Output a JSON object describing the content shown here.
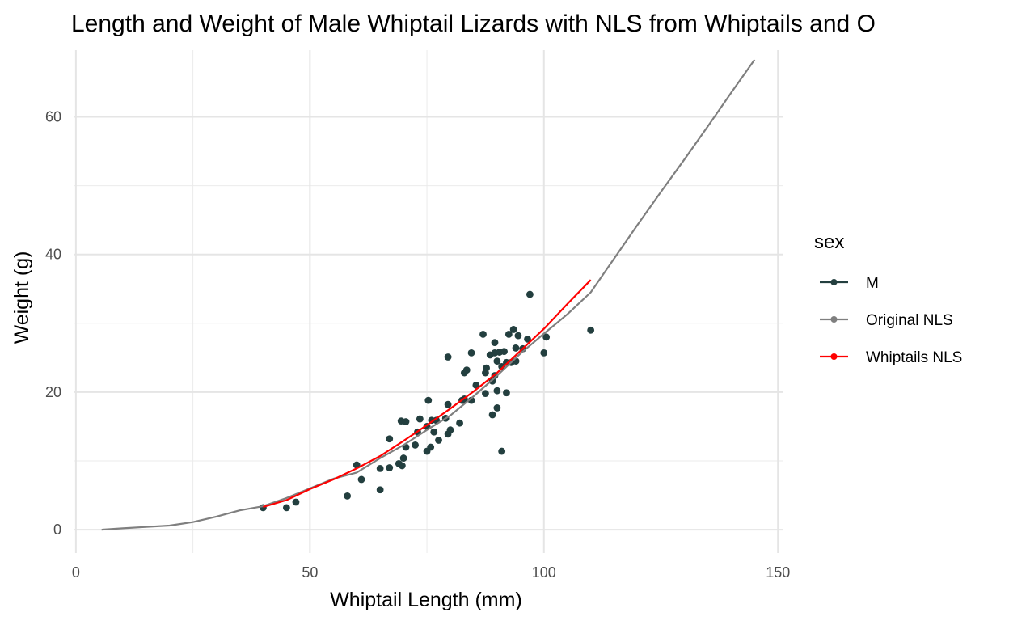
{
  "chart_data": {
    "type": "scatter",
    "title": "Length and Weight of Male Whiptail Lizards with NLS from Whiptails and O",
    "xlabel": "Whiptail Length (mm)",
    "ylabel": "Weight (g)",
    "xlim": [
      -0.5,
      151
    ],
    "ylim": [
      -3.4,
      69.7
    ],
    "x_ticks": [
      0,
      50,
      100,
      150
    ],
    "x_tick_labels": [
      "0",
      "50",
      "100",
      "150"
    ],
    "y_ticks": [
      0,
      20,
      40,
      60
    ],
    "y_tick_labels": [
      "0",
      "20",
      "40",
      "60"
    ],
    "grid": true,
    "legend": {
      "title": "sex",
      "position": "right",
      "entries": [
        {
          "label": "M",
          "color": "#233f3f"
        },
        {
          "label": "Original NLS",
          "color": "#7f7f7f"
        },
        {
          "label": "Whiptails NLS",
          "color": "#ff0000"
        }
      ]
    },
    "series": [
      {
        "name": "M",
        "kind": "points",
        "color": "#233f3f",
        "points": [
          [
            40,
            3.2
          ],
          [
            45,
            3.2
          ],
          [
            47,
            4.0
          ],
          [
            58,
            4.9
          ],
          [
            60,
            9.4
          ],
          [
            61,
            7.3
          ],
          [
            65,
            5.8
          ],
          [
            65,
            8.9
          ],
          [
            67,
            13.2
          ],
          [
            67,
            9.0
          ],
          [
            69,
            9.6
          ],
          [
            69.5,
            15.8
          ],
          [
            69.7,
            9.3
          ],
          [
            70,
            10.4
          ],
          [
            70.5,
            15.7
          ],
          [
            70.5,
            12.0
          ],
          [
            72.5,
            12.3
          ],
          [
            73,
            14.2
          ],
          [
            73.5,
            16.1
          ],
          [
            75,
            11.4
          ],
          [
            75,
            15.0
          ],
          [
            75.3,
            18.8
          ],
          [
            75.8,
            12.0
          ],
          [
            76,
            15.9
          ],
          [
            76.5,
            14.2
          ],
          [
            77,
            15.9
          ],
          [
            77.5,
            13.0
          ],
          [
            79,
            16.2
          ],
          [
            79.5,
            13.9
          ],
          [
            79.5,
            18.2
          ],
          [
            79.5,
            25.1
          ],
          [
            80,
            14.5
          ],
          [
            82,
            15.5
          ],
          [
            82.5,
            18.8
          ],
          [
            83,
            19.0
          ],
          [
            83,
            22.8
          ],
          [
            83.5,
            23.2
          ],
          [
            84.5,
            18.8
          ],
          [
            84.5,
            25.7
          ],
          [
            85.5,
            21.0
          ],
          [
            87,
            28.4
          ],
          [
            87.5,
            22.8
          ],
          [
            87.5,
            19.8
          ],
          [
            87.7,
            23.5
          ],
          [
            88.5,
            25.4
          ],
          [
            89,
            16.7
          ],
          [
            89,
            21.6
          ],
          [
            89.5,
            22.4
          ],
          [
            89.5,
            25.7
          ],
          [
            89.5,
            27.2
          ],
          [
            90,
            17.7
          ],
          [
            90,
            20.2
          ],
          [
            90,
            24.5
          ],
          [
            90.5,
            25.8
          ],
          [
            91,
            11.4
          ],
          [
            91,
            23.7
          ],
          [
            91.5,
            25.9
          ],
          [
            92,
            19.9
          ],
          [
            92,
            24.3
          ],
          [
            92.5,
            28.4
          ],
          [
            93,
            24.3
          ],
          [
            93.5,
            29.1
          ],
          [
            94,
            24.5
          ],
          [
            94,
            26.4
          ],
          [
            94.5,
            28.2
          ],
          [
            95.5,
            26.3
          ],
          [
            96.5,
            27.7
          ],
          [
            97,
            34.2
          ],
          [
            100,
            25.7
          ],
          [
            100.5,
            28.0
          ],
          [
            110,
            29.0
          ]
        ]
      },
      {
        "name": "Original NLS",
        "kind": "line",
        "color": "#7f7f7f",
        "points": [
          [
            5.5,
            0.0
          ],
          [
            10,
            0.2
          ],
          [
            15,
            0.4
          ],
          [
            20,
            0.6
          ],
          [
            25,
            1.1
          ],
          [
            30,
            1.9
          ],
          [
            35,
            2.8
          ],
          [
            40,
            3.4
          ],
          [
            45,
            4.6
          ],
          [
            50,
            6.0
          ],
          [
            55,
            7.4
          ],
          [
            60,
            8.3
          ],
          [
            65,
            10.4
          ],
          [
            70,
            12.3
          ],
          [
            75,
            14.5
          ],
          [
            80,
            16.6
          ],
          [
            85,
            19.4
          ],
          [
            90,
            22.4
          ],
          [
            95,
            25.6
          ],
          [
            100,
            28.5
          ],
          [
            105,
            31.3
          ],
          [
            110,
            34.5
          ],
          [
            115,
            39.4
          ],
          [
            120,
            44.3
          ],
          [
            125,
            49.1
          ],
          [
            130,
            53.8
          ],
          [
            135,
            58.6
          ],
          [
            140,
            63.5
          ],
          [
            145,
            68.3
          ]
        ]
      },
      {
        "name": "Whiptails NLS",
        "kind": "line",
        "color": "#ff0000",
        "points": [
          [
            40,
            3.3
          ],
          [
            45,
            4.3
          ],
          [
            50,
            5.9
          ],
          [
            55,
            7.3
          ],
          [
            60,
            8.9
          ],
          [
            65,
            10.7
          ],
          [
            70,
            12.9
          ],
          [
            75,
            15.2
          ],
          [
            80,
            17.6
          ],
          [
            85,
            20.1
          ],
          [
            90,
            22.8
          ],
          [
            95,
            26.0
          ],
          [
            100,
            29.2
          ],
          [
            105,
            32.8
          ],
          [
            110,
            36.3
          ]
        ]
      }
    ]
  }
}
